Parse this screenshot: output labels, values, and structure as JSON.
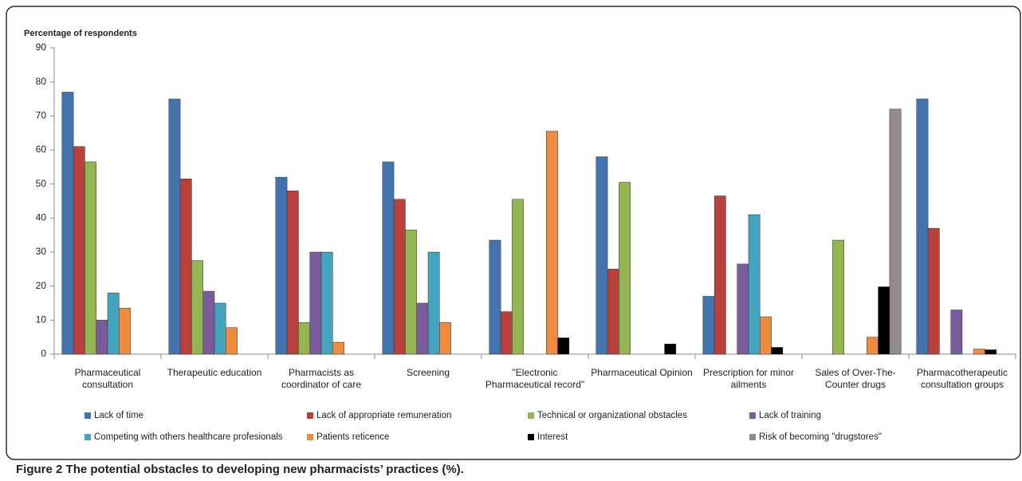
{
  "chart_data": {
    "type": "bar",
    "y_axis_label": "Percentage of respondents",
    "caption_label": "Figure 2",
    "caption": "The potential obstacles to developing new pharmacists’ practices (%).",
    "categories": [
      "Pharmaceutical consultation",
      "Therapeutic education",
      "Pharmacists as coordinator of care",
      "Screening",
      "\"Electronic Pharmaceutical record\"",
      "Pharmaceutical Opinion",
      "Prescription for minor ailments",
      "Sales of Over-The-Counter drugs",
      "Pharmacotherapeutic consultation groups"
    ],
    "series": [
      {
        "name": "Lack of time",
        "color": "#4374b0",
        "values": [
          77,
          75,
          52,
          56.5,
          33.5,
          58,
          17,
          null,
          75
        ]
      },
      {
        "name": "Lack of appropriate remuneration",
        "color": "#b8403d",
        "values": [
          61,
          51.5,
          48,
          45.5,
          12.5,
          25,
          46.5,
          null,
          37
        ]
      },
      {
        "name": "Technical or organizational obstacles",
        "color": "#94b652",
        "values": [
          56.5,
          27.5,
          9.3,
          36.5,
          45.5,
          50.5,
          null,
          33.5,
          null
        ]
      },
      {
        "name": "Lack of training",
        "color": "#7a5c9c",
        "values": [
          10,
          18.5,
          30,
          15,
          null,
          null,
          26.5,
          null,
          13
        ]
      },
      {
        "name": "Competing with others healthcare profesionals",
        "color": "#44a3bd",
        "values": [
          18,
          15,
          30,
          30,
          null,
          null,
          41,
          null,
          null
        ]
      },
      {
        "name": "Patients reticence",
        "color": "#ef8b3e",
        "values": [
          13.5,
          7.8,
          3.5,
          9.3,
          65.5,
          null,
          11,
          5,
          1.5
        ]
      },
      {
        "name": "Interest",
        "color": "#000000",
        "values": [
          null,
          null,
          null,
          null,
          4.8,
          3,
          2,
          19.8,
          1.3
        ]
      },
      {
        "name": "Risk of becoming \"drugstores\"",
        "color": "#958b8b",
        "values": [
          null,
          null,
          null,
          null,
          null,
          null,
          null,
          72,
          null
        ]
      }
    ],
    "ylim": [
      0,
      90
    ],
    "yticks": [
      0,
      10,
      20,
      30,
      40,
      50,
      60,
      70,
      80,
      90
    ],
    "grid": false
  }
}
